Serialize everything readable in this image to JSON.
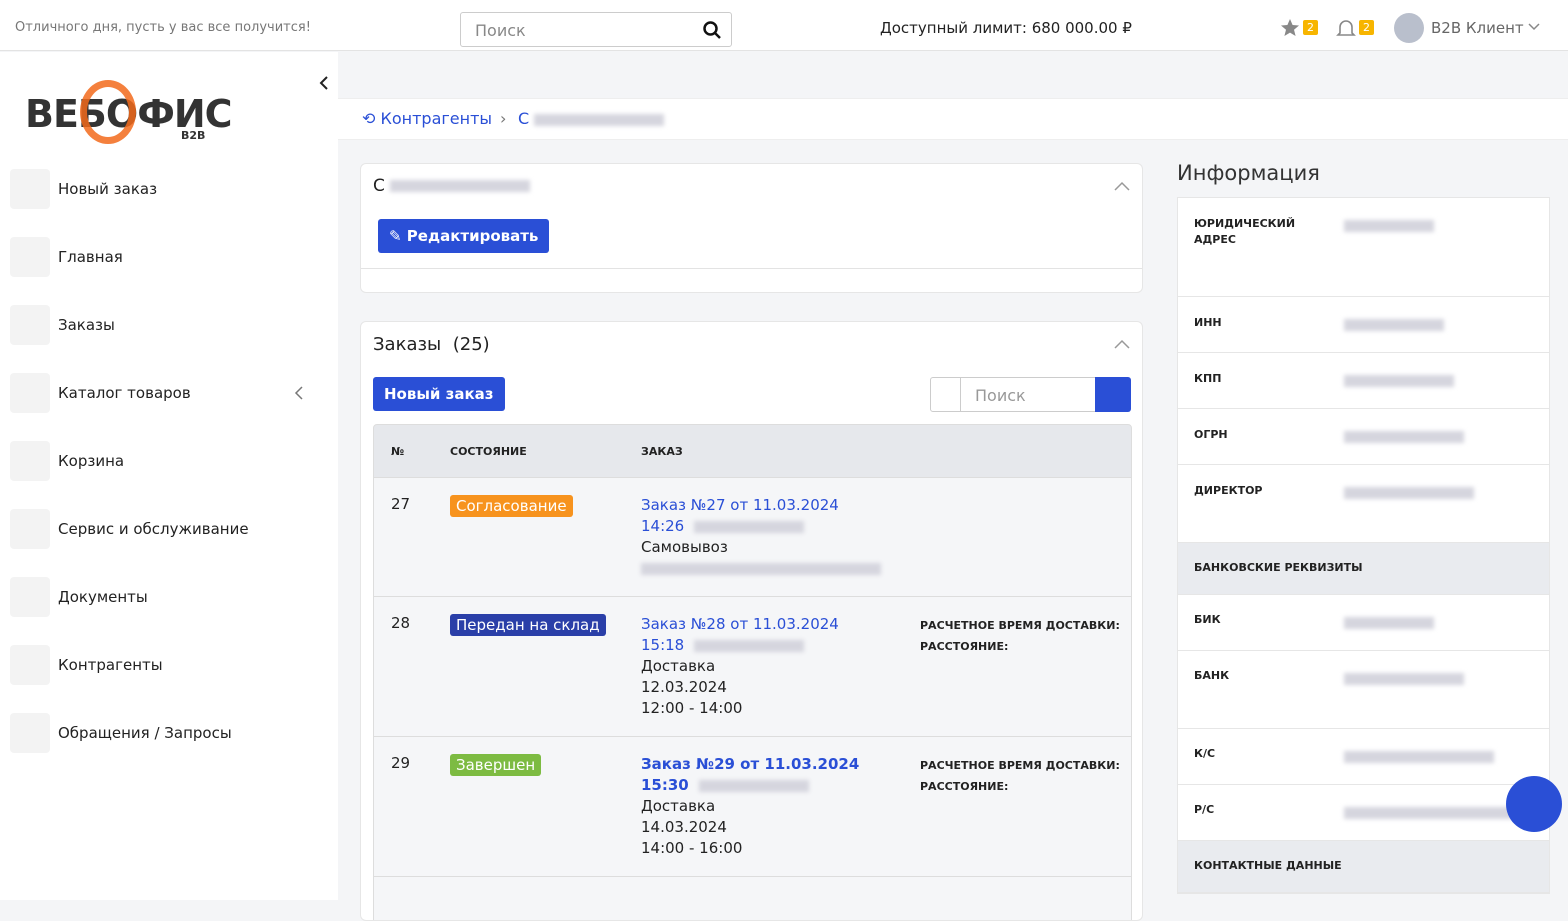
{
  "header": {
    "greeting": "Отличного дня, пусть у вас все получится!",
    "search_placeholder": "Поиск",
    "limit": "Доступный лимит: 680 000.00 ₽",
    "favorites_count": "2",
    "notifications_count": "2",
    "user": "B2B Клиент"
  },
  "logo": {
    "name": "ВЕБОФИС",
    "badge": "B2B"
  },
  "sidebar": {
    "items": [
      "Новый заказ",
      "Главная",
      "Заказы",
      "Каталог товаров",
      "Корзина",
      "Сервис и обслуживание",
      "Документы",
      "Контрагенты",
      "Обращения / Запросы"
    ]
  },
  "breadcrumb": {
    "parent": "Контрагенты",
    "current": "С"
  },
  "company_card": {
    "title": "С",
    "edit_button": "Редактировать"
  },
  "orders": {
    "title": "Заказы",
    "count_label": "(25)",
    "new_button": "Новый заказ",
    "search_placeholder": "Поиск",
    "columns": [
      "№",
      "СОСТОЯНИЕ",
      "ЗАКАЗ"
    ],
    "rows": [
      {
        "number": "27",
        "status": "Согласование",
        "link": "Заказ №27 от 11.03.2024",
        "time": "14:26",
        "lines": [
          "Самовывоз"
        ],
        "extra": []
      },
      {
        "number": "28",
        "status": "Передан на склад",
        "link": "Заказ №28 от 11.03.2024",
        "time": "15:18",
        "lines": [
          "Доставка",
          "12.03.2024",
          "12:00 - 14:00"
        ],
        "extra": [
          "РАСЧЕТНОЕ ВРЕМЯ ДОСТАВКИ:",
          "РАССТОЯНИЕ:"
        ]
      },
      {
        "number": "29",
        "status": "Завершен",
        "link": "Заказ №29 от 11.03.2024",
        "time": "15:30",
        "lines": [
          "Доставка",
          "14.03.2024",
          "14:00 - 16:00"
        ],
        "extra": [
          "РАСЧЕТНОЕ ВРЕМЯ ДОСТАВКИ:",
          "РАССТОЯНИЕ:"
        ]
      }
    ]
  },
  "info": {
    "title": "Информация",
    "fields": [
      "ЮРИДИЧЕСКИЙ АДРЕС",
      "ИНН",
      "КПП",
      "ОГРН",
      "ДИРЕКТОР"
    ],
    "bank_section": "БАНКОВСКИЕ РЕКВИЗИТЫ",
    "bank_fields": [
      "БИК",
      "БАНК",
      "К/С",
      "Р/С"
    ],
    "contacts_section": "КОНТАКТНЫЕ ДАННЫЕ"
  }
}
